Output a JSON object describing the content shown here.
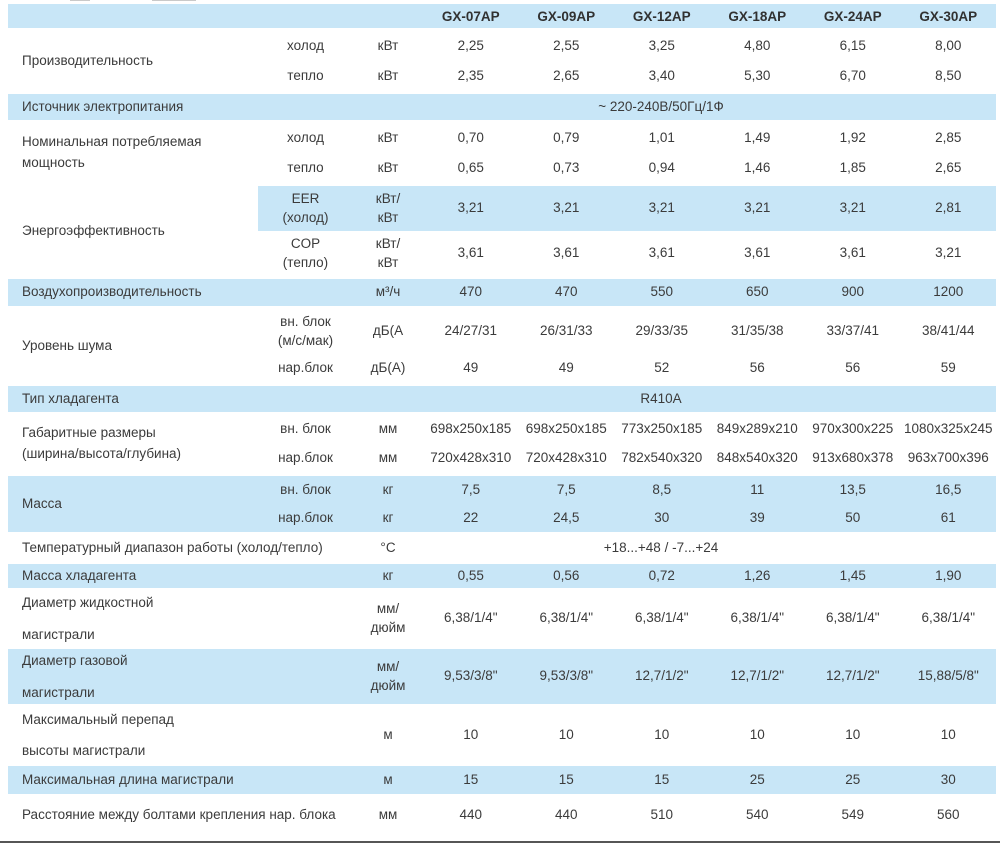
{
  "colors": {
    "row_shade": "#c8e6f7",
    "text": "#3b3b3b",
    "bottom_rule": "#565656"
  },
  "table": {
    "models": [
      "GX-07AP",
      "GX-09AP",
      "GX-12AP",
      "GX-18AP",
      "GX-24AP",
      "GX-30AP"
    ],
    "sections": [
      {
        "label": "Производительность",
        "rows": [
          {
            "sub": "холод",
            "unit": "кВт",
            "values": [
              "2,25",
              "2,55",
              "3,25",
              "4,80",
              "6,15",
              "8,00"
            ]
          },
          {
            "sub": "тепло",
            "unit": "кВт",
            "values": [
              "2,35",
              "2,65",
              "3,40",
              "5,30",
              "6,70",
              "8,50"
            ]
          }
        ]
      },
      {
        "label": "Источник электропитания",
        "shaded": true,
        "rows": [
          {
            "span_value": "~ 220-240В/50Гц/1Ф"
          }
        ]
      },
      {
        "label": "Номинальная потребляемая\nмощность",
        "rows": [
          {
            "sub": "холод",
            "unit": "кВт",
            "values": [
              "0,70",
              "0,79",
              "1,01",
              "1,49",
              "1,92",
              "2,85"
            ]
          },
          {
            "sub": "тепло",
            "unit": "кВт",
            "values": [
              "0,65",
              "0,73",
              "0,94",
              "1,46",
              "1,85",
              "2,65"
            ]
          }
        ]
      },
      {
        "label": "Энергоэффективность",
        "rows": [
          {
            "sub": "EER\n(холод)",
            "unit": "кВт/\nкВт",
            "highlighted": true,
            "values": [
              "3,21",
              "3,21",
              "3,21",
              "3,21",
              "3,21",
              "2,81"
            ]
          },
          {
            "sub": "COP\n(тепло)",
            "unit": "кВт/\nкВт",
            "values": [
              "3,61",
              "3,61",
              "3,61",
              "3,61",
              "3,61",
              "3,21"
            ]
          }
        ]
      },
      {
        "label": "Воздухопроизводительность",
        "shaded": true,
        "rows": [
          {
            "unit": "м³/ч",
            "values": [
              "470",
              "470",
              "550",
              "650",
              "900",
              "1200"
            ]
          }
        ]
      },
      {
        "label": "Уровень шума",
        "rows": [
          {
            "sub": "вн. блок\n(м/с/мак)",
            "unit": "дБ(А",
            "values": [
              "24/27/31",
              "26/31/33",
              "29/33/35",
              "31/35/38",
              "33/37/41",
              "38/41/44"
            ]
          },
          {
            "sub": "нар.блок",
            "unit": "дБ(А)",
            "values": [
              "49",
              "49",
              "52",
              "56",
              "56",
              "59"
            ]
          }
        ]
      },
      {
        "label": "Тип хладагента",
        "shaded": true,
        "rows": [
          {
            "span_value": "R410A"
          }
        ]
      },
      {
        "label": "Габаритные размеры\n(ширина/высота/глубина)",
        "rows": [
          {
            "sub": "вн. блок",
            "unit": "мм",
            "values": [
              "698x250x185",
              "698x250x185",
              "773x250x185",
              "849x289x210",
              "970x300x225",
              "1080x325x245"
            ]
          },
          {
            "sub": "нар.блок",
            "unit": "мм",
            "values": [
              "720x428x310",
              "720x428x310",
              "782x540x320",
              "848x540x320",
              "913x680x378",
              "963x700x396"
            ]
          }
        ]
      },
      {
        "label": "Масса",
        "shaded": true,
        "rows": [
          {
            "sub": "вн. блок",
            "unit": "кг",
            "values": [
              "7,5",
              "7,5",
              "8,5",
              "11",
              "13,5",
              "16,5"
            ]
          },
          {
            "sub": "нар.блок",
            "unit": "кг",
            "values": [
              "22",
              "24,5",
              "30",
              "39",
              "50",
              "61"
            ]
          }
        ]
      },
      {
        "label": "Температурный диапазон работы (холод/тепло)",
        "rows": [
          {
            "unit": "°С",
            "span_value": "+18...+48 / -7...+24"
          }
        ]
      },
      {
        "label": "Масса хладагента",
        "shaded": true,
        "rows": [
          {
            "unit": "кг",
            "values": [
              "0,55",
              "0,56",
              "0,72",
              "1,26",
              "1,45",
              "1,90"
            ]
          }
        ]
      },
      {
        "label": "Диаметр жидкостной\nмагистрали",
        "rows": [
          {
            "unit": "мм/\nдюйм",
            "values": [
              "6,38/1/4\"",
              "6,38/1/4\"",
              "6,38/1/4\"",
              "6,38/1/4\"",
              "6,38/1/4\"",
              "6,38/1/4\""
            ]
          }
        ]
      },
      {
        "label": "Диаметр газовой\nмагистрали",
        "shaded": true,
        "rows": [
          {
            "unit": "мм/\nдюйм",
            "values": [
              "9,53/3/8\"",
              "9,53/3/8\"",
              "12,7/1/2\"",
              "12,7/1/2\"",
              "12,7/1/2\"",
              "15,88/5/8\""
            ]
          }
        ]
      },
      {
        "label": "Максимальный перепад\nвысоты магистрали",
        "rows": [
          {
            "unit": "м",
            "values": [
              "10",
              "10",
              "10",
              "10",
              "10",
              "10"
            ]
          }
        ]
      },
      {
        "label": "Максимальная длина магистрали",
        "shaded": true,
        "rows": [
          {
            "unit": "м",
            "values": [
              "15",
              "15",
              "15",
              "25",
              "25",
              "30"
            ]
          }
        ]
      },
      {
        "label": "Расстояние между болтами крепления нар. блока",
        "rows": [
          {
            "unit": "мм",
            "values": [
              "440",
              "440",
              "510",
              "540",
              "549",
              "560"
            ]
          }
        ]
      }
    ]
  }
}
